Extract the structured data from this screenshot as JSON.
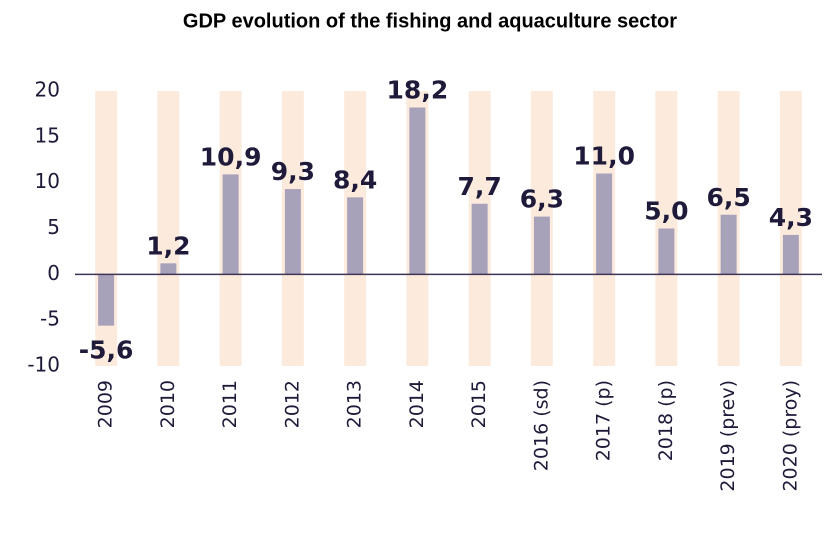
{
  "chart_data": {
    "type": "bar",
    "title": "GDP evolution of the fishing and aquaculture sector",
    "categories": [
      "2009",
      "2010",
      "2011",
      "2012",
      "2013",
      "2014",
      "2015",
      "2016 (sd)",
      "2017 (p)",
      "2018 (p)",
      "2019 (prev)",
      "2020 (proy)"
    ],
    "values": [
      -5.6,
      1.2,
      10.9,
      9.3,
      8.4,
      18.2,
      7.7,
      6.3,
      11.0,
      5.0,
      6.5,
      4.3
    ],
    "value_labels": [
      "-5,6",
      "1,2",
      "10,9",
      "9,3",
      "8,4",
      "18,2",
      "7,7",
      "6,3",
      "11,0",
      "5,0",
      "6,5",
      "4,3"
    ],
    "color": "#a7a1ba",
    "ylim": [
      -10,
      20
    ],
    "yticks": [
      20,
      15,
      10,
      5,
      0,
      -5,
      -10
    ],
    "grid": false
  }
}
